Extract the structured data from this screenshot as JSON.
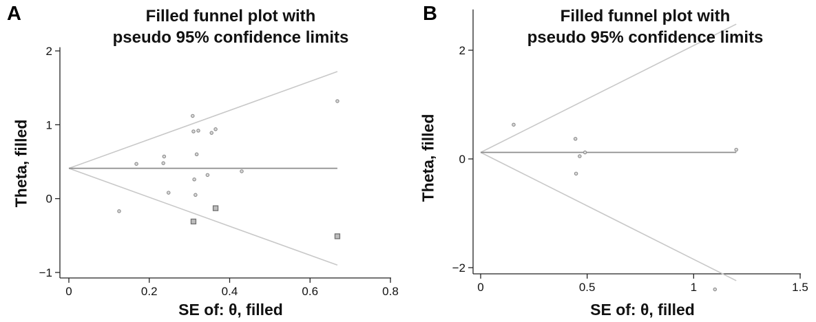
{
  "chart_data": [
    {
      "panel": "A",
      "type": "scatter",
      "title": [
        "Filled funnel plot with",
        "pseudo 95% confidence limits"
      ],
      "xlabel": "SE of: θ, filled",
      "ylabel": "Theta, filled",
      "xlim": [
        0,
        0.8
      ],
      "ylim": [
        -1.1,
        2.05
      ],
      "xticks": [
        0,
        0.2,
        0.4,
        0.6,
        0.8
      ],
      "xtick_labels": [
        "0",
        "0.2",
        "0.4",
        "0.6",
        "0.8"
      ],
      "yticks": [
        -1,
        0,
        1,
        2
      ],
      "ytick_labels": [
        "−1",
        "0",
        "1",
        "2"
      ],
      "center_line": {
        "y": 0.41,
        "x_end": 0.668
      },
      "confidence_limits": {
        "x_end": 0.668,
        "upper_end": 1.72,
        "lower_end": -0.9
      },
      "series": [
        {
          "marker": "dot",
          "points": [
            [
              0.125,
              -0.17
            ],
            [
              0.168,
              0.47
            ],
            [
              0.235,
              0.48
            ],
            [
              0.237,
              0.57
            ],
            [
              0.248,
              0.08
            ],
            [
              0.308,
              1.12
            ],
            [
              0.31,
              0.91
            ],
            [
              0.312,
              0.26
            ],
            [
              0.315,
              0.05
            ],
            [
              0.318,
              0.6
            ],
            [
              0.322,
              0.92
            ],
            [
              0.345,
              0.32
            ],
            [
              0.355,
              0.89
            ],
            [
              0.365,
              0.94
            ],
            [
              0.43,
              0.37
            ],
            [
              0.668,
              1.32
            ]
          ]
        },
        {
          "marker": "square",
          "points": [
            [
              0.31,
              -0.31
            ],
            [
              0.365,
              -0.13
            ],
            [
              0.668,
              -0.51
            ]
          ]
        }
      ]
    },
    {
      "panel": "B",
      "type": "scatter",
      "title": [
        "Filled funnel plot with",
        "pseudo 95% confidence limits"
      ],
      "xlabel": "SE of: θ, filled",
      "ylabel": "Theta, filled",
      "xlim": [
        0,
        1.5
      ],
      "ylim": [
        -2.65,
        2.75
      ],
      "xticks": [
        0,
        0.5,
        1,
        1.5
      ],
      "xtick_labels": [
        "0",
        "0.5",
        "1",
        "1.5"
      ],
      "yticks": [
        -2,
        0,
        2
      ],
      "ytick_labels": [
        "−2",
        "0",
        "2"
      ],
      "center_line": {
        "y": 0.12,
        "x_end": 1.2
      },
      "confidence_limits": {
        "x_end": 1.2,
        "upper_end": 2.48,
        "lower_end": -2.24
      },
      "series": [
        {
          "marker": "dot",
          "points": [
            [
              0.155,
              0.63
            ],
            [
              0.445,
              0.37
            ],
            [
              0.448,
              -0.27
            ],
            [
              0.465,
              0.05
            ],
            [
              0.49,
              0.12
            ],
            [
              1.1,
              -2.4
            ],
            [
              1.2,
              0.17
            ]
          ]
        }
      ]
    }
  ],
  "colors": {
    "axis": "#222222",
    "center_line": "#8c8c8c",
    "limit_lines": "#c8c8c8",
    "marker_stroke": "#8a8a8a",
    "marker_fill": "#d9d9d9"
  }
}
